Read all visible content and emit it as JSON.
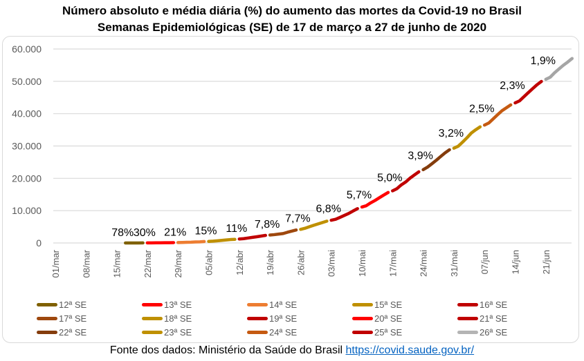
{
  "chart_data": {
    "type": "line",
    "title": "Número absoluto e média diária (%) do aumento das mortes da Covid-19 no Brasil",
    "subtitle": "Semanas Epidemiológicas (SE) de 17 de março a 27 de junho de 2020",
    "ylim": [
      0,
      60000
    ],
    "yticks": [
      "0",
      "10.000",
      "20.000",
      "30.000",
      "40.000",
      "50.000",
      "60.000"
    ],
    "xticks": [
      "01/mar",
      "08/mar",
      "15/mar",
      "22/mar",
      "29/mar",
      "05/abr",
      "12/abr",
      "19/abr",
      "26/abr",
      "03/mai",
      "10/mai",
      "17/mai",
      "24/mai",
      "31/mai",
      "07/jun",
      "14/jun",
      "21/jun"
    ],
    "grid": true,
    "legend_position": "bottom",
    "series": [
      {
        "name": "12ª SE",
        "color": "#7f6000",
        "label": "78%",
        "start": "17/mar",
        "values": [
          1,
          4,
          6,
          11,
          18
        ]
      },
      {
        "name": "13ª SE",
        "color": "#ff0000",
        "label": "30%",
        "start": "22/mar",
        "values": [
          25,
          34,
          46,
          59,
          77,
          92,
          111
        ]
      },
      {
        "name": "14ª SE",
        "color": "#ed7d31",
        "label": "21%",
        "start": "29/mar",
        "values": [
          136,
          159,
          201,
          240,
          324,
          359,
          445
        ]
      },
      {
        "name": "15ª SE",
        "color": "#bf9000",
        "label": "15%",
        "start": "05/abr",
        "values": [
          486,
          553,
          667,
          800,
          941,
          1056,
          1124
        ]
      },
      {
        "name": "16ª SE",
        "color": "#c00000",
        "label": "11%",
        "start": "12/abr",
        "values": [
          1223,
          1328,
          1532,
          1736,
          1924,
          2141,
          2347
        ]
      },
      {
        "name": "17ª SE",
        "color": "#9e480e",
        "label": "7,8%",
        "start": "19/abr",
        "values": [
          2462,
          2575,
          2741,
          2906,
          3313,
          3670,
          4016
        ]
      },
      {
        "name": "18ª SE",
        "color": "#bf9000",
        "label": "7,7%",
        "start": "26/abr",
        "values": [
          4205,
          4543,
          5017,
          5466,
          5901,
          6329,
          6750
        ]
      },
      {
        "name": "19ª SE",
        "color": "#c00000",
        "label": "6,8%",
        "start": "03/mai",
        "values": [
          7025,
          7321,
          7921,
          8536,
          9146,
          9897,
          10627
        ]
      },
      {
        "name": "20ª SE",
        "color": "#ff0000",
        "label": "5,7%",
        "start": "10/mai",
        "values": [
          11123,
          11519,
          12400,
          13149,
          13993,
          14817,
          15633
        ]
      },
      {
        "name": "21ª SE",
        "color": "#c00000",
        "label": "5,0%",
        "start": "17/mai",
        "values": [
          16118,
          16792,
          17971,
          18859,
          20047,
          21048,
          22013
        ]
      },
      {
        "name": "22ª SE",
        "color": "#843c0c",
        "label": "3,9%",
        "start": "24/mai",
        "values": [
          22666,
          23473,
          24512,
          25598,
          26754,
          27878,
          28834
        ]
      },
      {
        "name": "23ª SE",
        "color": "#bf9000",
        "label": "3,2%",
        "start": "31/mai",
        "values": [
          29314,
          29937,
          31199,
          32548,
          34021,
          35026,
          35930
        ]
      },
      {
        "name": "24ª SE",
        "color": "#c55a11",
        "label": "2,5%",
        "start": "07/jun",
        "values": [
          36455,
          37134,
          38406,
          39680,
          40919,
          41828,
          42720
        ]
      },
      {
        "name": "25ª SE",
        "color": "#c00000",
        "label": "2,3%",
        "start": "14/jun",
        "values": [
          43332,
          43959,
          45241,
          46510,
          47748,
          48954,
          49976
        ]
      },
      {
        "name": "26ª SE",
        "color": "#a5a5a5",
        "label": "1,9%",
        "start": "21/jun",
        "values": [
          50617,
          51271,
          52645,
          53830,
          54971,
          55961,
          57070
        ]
      }
    ]
  },
  "footer": {
    "text": "Fonte dos dados: Ministério da Saúde do Brasil ",
    "link": "https://covid.saude.gov.br/"
  }
}
